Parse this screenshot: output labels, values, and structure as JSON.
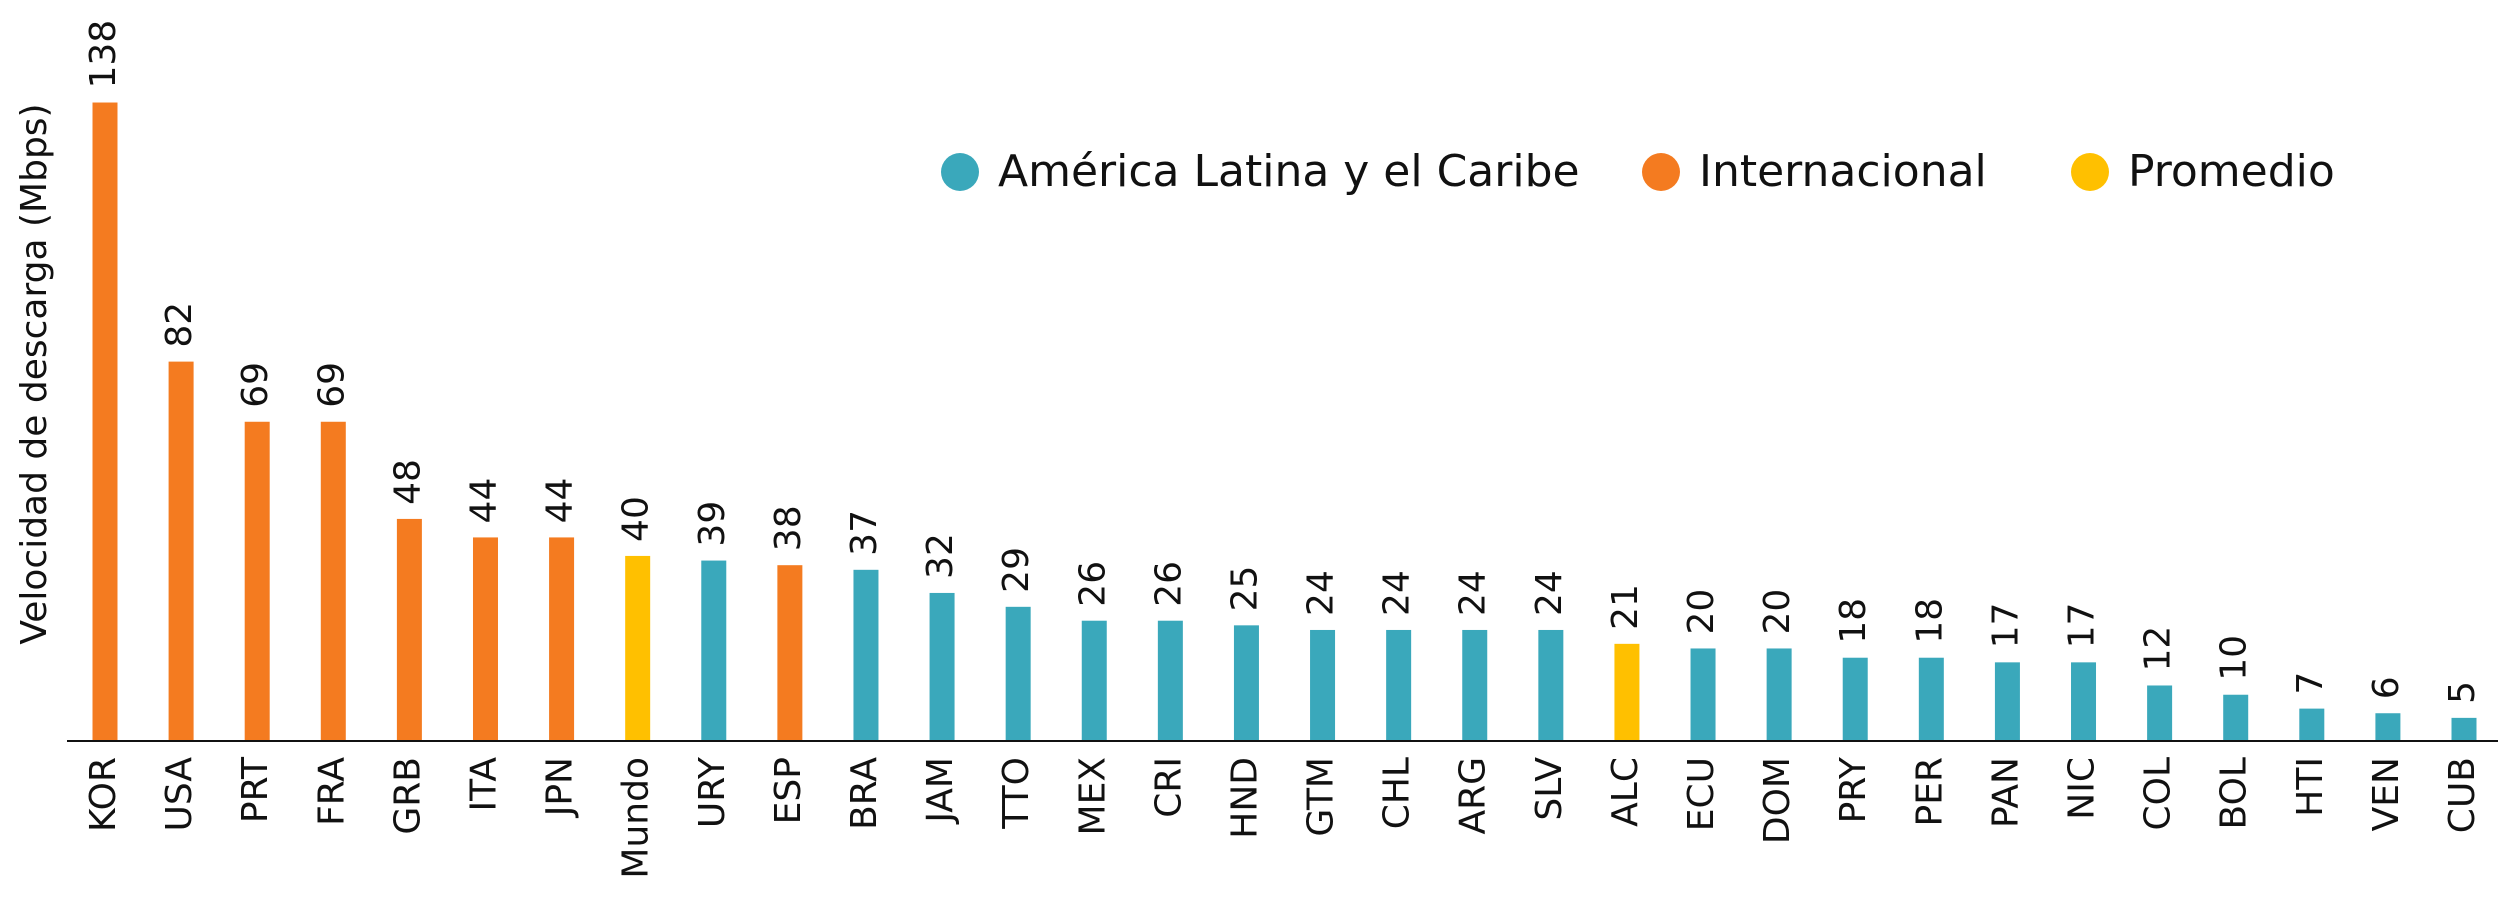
{
  "chart_data": {
    "type": "bar",
    "y_label": "Velocidad de descarga (Mbps)",
    "categories": [
      "KOR",
      "USA",
      "PRT",
      "FRA",
      "GRB",
      "ITA",
      "JPN",
      "Mundo",
      "URY",
      "ESP",
      "BRA",
      "JAM",
      "TTO",
      "MEX",
      "CRI",
      "HND",
      "GTM",
      "CHL",
      "ARG",
      "SLV",
      "ALC",
      "ECU",
      "DOM",
      "PRY",
      "PER",
      "PAN",
      "NIC",
      "COL",
      "BOL",
      "HTI",
      "VEN",
      "CUB"
    ],
    "values": [
      138,
      82,
      69,
      69,
      48,
      44,
      44,
      40,
      39,
      38,
      37,
      32,
      29,
      26,
      26,
      25,
      24,
      24,
      24,
      24,
      21,
      20,
      20,
      18,
      18,
      17,
      17,
      12,
      10,
      7,
      6,
      5
    ],
    "colors": [
      "#f47b20",
      "#f47b20",
      "#f47b20",
      "#f47b20",
      "#f47b20",
      "#f47b20",
      "#f47b20",
      "#ffc000",
      "#3aa8bb",
      "#f47b20",
      "#3aa8bb",
      "#3aa8bb",
      "#3aa8bb",
      "#3aa8bb",
      "#3aa8bb",
      "#3aa8bb",
      "#3aa8bb",
      "#3aa8bb",
      "#3aa8bb",
      "#3aa8bb",
      "#ffc000",
      "#3aa8bb",
      "#3aa8bb",
      "#3aa8bb",
      "#3aa8bb",
      "#3aa8bb",
      "#3aa8bb",
      "#3aa8bb",
      "#3aa8bb",
      "#3aa8bb",
      "#3aa8bb",
      "#3aa8bb"
    ],
    "legend": [
      {
        "name": "América Latina y el Caribe",
        "color": "#3aa8bb"
      },
      {
        "name": "Internacional",
        "color": "#f47b20"
      },
      {
        "name": "Promedio",
        "color": "#ffc000"
      }
    ],
    "ylim": [
      0,
      150
    ]
  }
}
